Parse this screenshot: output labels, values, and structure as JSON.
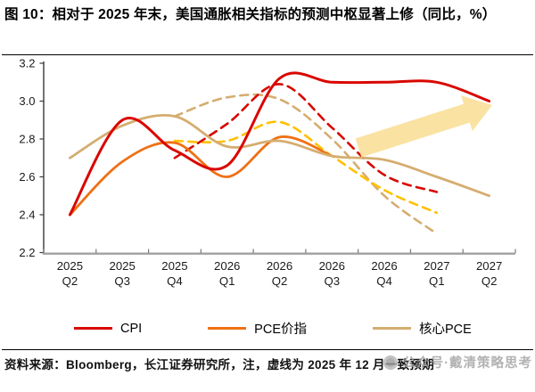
{
  "title": "图 10：相对于 2025 年末，美国通胀相关指标的预测中枢显著上修（同比，%）",
  "footer": {
    "source_note": "资料来源：Bloomberg，长江证券研究所，注，虚线为 2025 年 12 月一致预期"
  },
  "watermark": {
    "icon": "wechat-public-account-icon",
    "text": "公众号·戴清策略思考"
  },
  "legend": {
    "items": [
      {
        "label": "CPI",
        "color": "#d90700"
      },
      {
        "label": "PCE价指",
        "color": "#ef7014"
      },
      {
        "label": "核心PCE",
        "color": "#d5ad70"
      }
    ]
  },
  "colors": {
    "cpi_red": "#d90700",
    "pce_orange": "#ef7014",
    "core_pce_tan": "#d5ad70",
    "pce_forecast_yellow": "#ffc000",
    "arrow_fill": "#fae2a2",
    "x_axis": "#a0a0a0",
    "y_axis": "#3a3a3a",
    "tick_text": "#1a1a1a"
  },
  "chart_data": {
    "type": "line",
    "title": "相对于 2025 年末，美国通胀相关指标的预测中枢显著上修",
    "unit": "同比，%",
    "categories": [
      "2025 Q2",
      "2025 Q3",
      "2025 Q4",
      "2026 Q1",
      "2026 Q2",
      "2026 Q3",
      "2026 Q4",
      "2027 Q1",
      "2027 Q2"
    ],
    "ylim": [
      2.2,
      3.2
    ],
    "yticks": [
      "3.2",
      "3.0",
      "2.8",
      "2.6",
      "2.4",
      "2.2"
    ],
    "grid": false,
    "legend_position": "bottom",
    "note": "虚线为 2025 年 12 月一致预期",
    "series": [
      {
        "id": "cpi",
        "name": "CPI",
        "color": "#d90700",
        "style": "solid",
        "values": [
          2.4,
          2.9,
          2.74,
          2.66,
          3.12,
          3.1,
          3.1,
          3.1,
          3.0
        ]
      },
      {
        "id": "pce",
        "name": "PCE价指",
        "color": "#ef7014",
        "style": "solid",
        "values": [
          2.4,
          2.68,
          2.78,
          2.6,
          2.81,
          2.71,
          null,
          null,
          null
        ]
      },
      {
        "id": "core-pce",
        "name": "核心PCE",
        "color": "#d5ad70",
        "style": "solid",
        "values": [
          2.7,
          2.87,
          2.92,
          2.76,
          2.79,
          2.71,
          2.69,
          2.6,
          2.5
        ]
      },
      {
        "id": "cpi-dashed",
        "name": "CPI",
        "color": "#d90700",
        "style": "dashed",
        "values": [
          null,
          null,
          2.7,
          2.88,
          3.09,
          2.86,
          2.61,
          2.52,
          null
        ]
      },
      {
        "id": "pce-dashed",
        "name": "PCE价指",
        "color": "#ffc000",
        "style": "dashed",
        "values": [
          null,
          null,
          2.79,
          2.79,
          2.89,
          2.71,
          2.53,
          2.41,
          null
        ]
      },
      {
        "id": "core-pce-dashed",
        "name": "核心PCE",
        "color": "#d5ad70",
        "style": "dashed",
        "values": [
          null,
          null,
          2.92,
          3.02,
          3.01,
          2.8,
          2.5,
          2.3,
          null
        ]
      }
    ]
  }
}
